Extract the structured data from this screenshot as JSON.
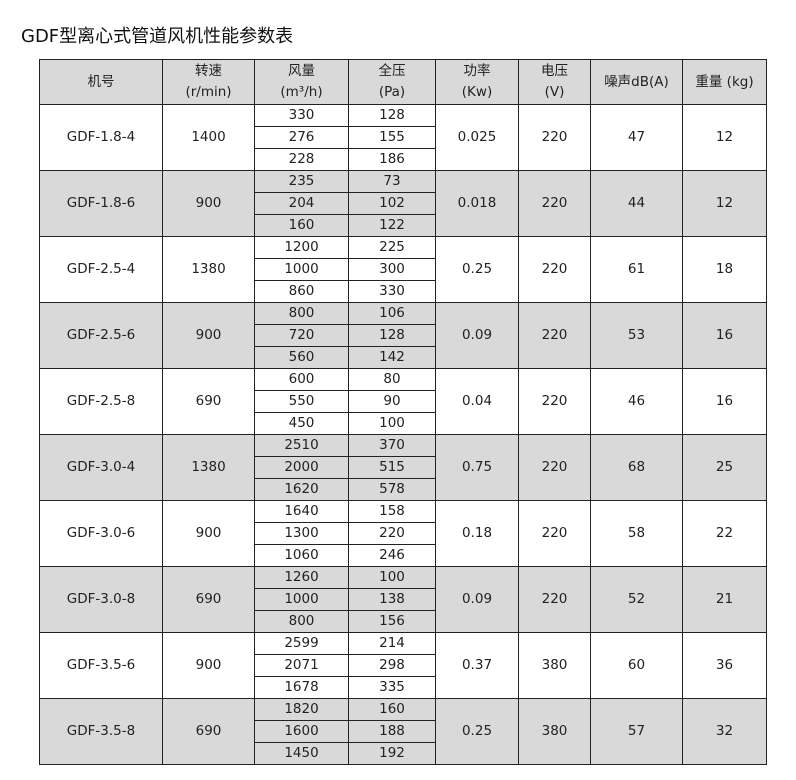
{
  "title": "GDF型离心式管道风机性能参数表",
  "colors": {
    "header_bg": "#d9d9d9",
    "alt_row_bg": "#d9d9d9",
    "border": "#222222"
  },
  "headers": [
    [
      "机号"
    ],
    [
      "转速",
      "(r/min)"
    ],
    [
      "风量",
      "(m³/h)"
    ],
    [
      "全压",
      "(Pa)"
    ],
    [
      "功率",
      "(Kw)"
    ],
    [
      "电压",
      "(V)"
    ],
    [
      "噪声dB(A)"
    ],
    [
      "重量 (kg)"
    ]
  ],
  "rows": [
    {
      "model": "GDF-1.8-4",
      "speed": "1400",
      "airflow": [
        "330",
        "276",
        "228"
      ],
      "pressure": [
        "128",
        "155",
        "186"
      ],
      "power": "0.025",
      "voltage": "220",
      "noise": "47",
      "weight": "12"
    },
    {
      "model": "GDF-1.8-6",
      "speed": "900",
      "airflow": [
        "235",
        "204",
        "160"
      ],
      "pressure": [
        "73",
        "102",
        "122"
      ],
      "power": "0.018",
      "voltage": "220",
      "noise": "44",
      "weight": "12"
    },
    {
      "model": "GDF-2.5-4",
      "speed": "1380",
      "airflow": [
        "1200",
        "1000",
        "860"
      ],
      "pressure": [
        "225",
        "300",
        "330"
      ],
      "power": "0.25",
      "voltage": "220",
      "noise": "61",
      "weight": "18"
    },
    {
      "model": "GDF-2.5-6",
      "speed": "900",
      "airflow": [
        "800",
        "720",
        "560"
      ],
      "pressure": [
        "106",
        "128",
        "142"
      ],
      "power": "0.09",
      "voltage": "220",
      "noise": "53",
      "weight": "16"
    },
    {
      "model": "GDF-2.5-8",
      "speed": "690",
      "airflow": [
        "600",
        "550",
        "450"
      ],
      "pressure": [
        "80",
        "90",
        "100"
      ],
      "power": "0.04",
      "voltage": "220",
      "noise": "46",
      "weight": "16"
    },
    {
      "model": "GDF-3.0-4",
      "speed": "1380",
      "airflow": [
        "2510",
        "2000",
        "1620"
      ],
      "pressure": [
        "370",
        "515",
        "578"
      ],
      "power": "0.75",
      "voltage": "220",
      "noise": "68",
      "weight": "25"
    },
    {
      "model": "GDF-3.0-6",
      "speed": "900",
      "airflow": [
        "1640",
        "1300",
        "1060"
      ],
      "pressure": [
        "158",
        "220",
        "246"
      ],
      "power": "0.18",
      "voltage": "220",
      "noise": "58",
      "weight": "22"
    },
    {
      "model": "GDF-3.0-8",
      "speed": "690",
      "airflow": [
        "1260",
        "1000",
        "800"
      ],
      "pressure": [
        "100",
        "138",
        "156"
      ],
      "power": "0.09",
      "voltage": "220",
      "noise": "52",
      "weight": "21"
    },
    {
      "model": "GDF-3.5-6",
      "speed": "900",
      "airflow": [
        "2599",
        "2071",
        "1678"
      ],
      "pressure": [
        "214",
        "298",
        "335"
      ],
      "power": "0.37",
      "voltage": "380",
      "noise": "60",
      "weight": "36"
    },
    {
      "model": "GDF-3.5-8",
      "speed": "690",
      "airflow": [
        "1820",
        "1600",
        "1450"
      ],
      "pressure": [
        "160",
        "188",
        "192"
      ],
      "power": "0.25",
      "voltage": "380",
      "noise": "57",
      "weight": "32"
    }
  ]
}
